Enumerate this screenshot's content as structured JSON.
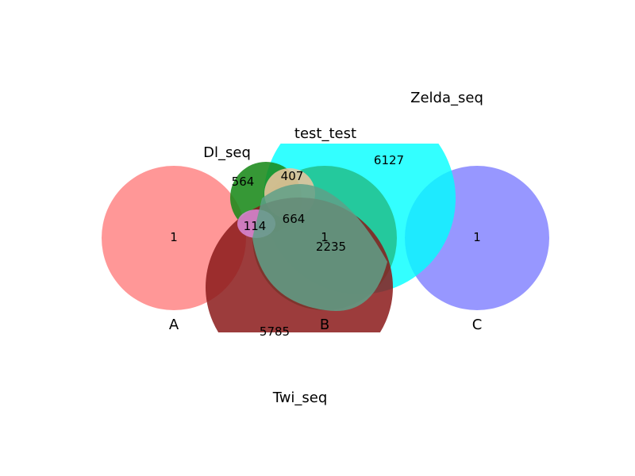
{
  "diagram": {
    "type": "venn",
    "sets": [
      {
        "name": "A",
        "color": "#ff9999"
      },
      {
        "name": "B",
        "color": "#1fcc99"
      },
      {
        "name": "C",
        "color": "#9999ff"
      },
      {
        "name": "Dl_seq",
        "color": "#2e9632"
      },
      {
        "name": "test_test",
        "color": "#e6c396"
      },
      {
        "name": "Zelda_seq",
        "color": "#33ffff"
      },
      {
        "name": "Twi_seq",
        "color": "#962e33"
      }
    ],
    "labels": {
      "a": "A",
      "b": "B",
      "c": "C",
      "dl": "Dl_seq",
      "test": "test_test",
      "zelda": "Zelda_seq",
      "twi": "Twi_seq"
    },
    "counts": {
      "a_only": "1",
      "b_only": "1",
      "c_only": "1",
      "dl_only": "564",
      "dl_test": "407",
      "dl_test_twi": "664",
      "dl_twi": "114",
      "zelda_twi": "2235",
      "zelda_only": "6127",
      "twi_only": "5785"
    }
  }
}
